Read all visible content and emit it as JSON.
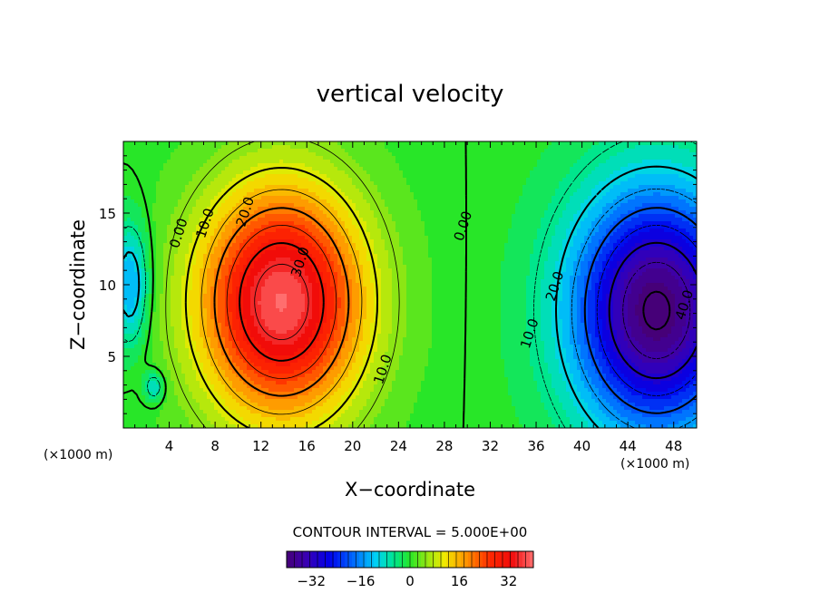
{
  "chart_data": {
    "type": "heatmap",
    "title": "vertical velocity",
    "xlabel": "X−coordinate",
    "ylabel": "Z−coordinate",
    "xlim": [
      0,
      50
    ],
    "ylim": [
      0,
      20
    ],
    "x_ticks": [
      "4",
      "8",
      "12",
      "16",
      "20",
      "24",
      "28",
      "32",
      "36",
      "40",
      "44",
      "48"
    ],
    "x_tick_values": [
      4,
      8,
      12,
      16,
      20,
      24,
      28,
      32,
      36,
      40,
      44,
      48
    ],
    "y_ticks": [
      "5",
      "10",
      "15"
    ],
    "y_tick_values": [
      5,
      10,
      15
    ],
    "x_unit_left": "(×1000 m)",
    "x_unit_right": "(×1000 m)",
    "contour_interval_text": "CONTOUR INTERVAL = 5.000E+00",
    "colorbar": {
      "range": [
        -40,
        40
      ],
      "ticks": [
        "−32",
        "−16",
        "0",
        "16",
        "32"
      ],
      "tick_values": [
        -32,
        -16,
        0,
        16,
        32
      ]
    },
    "contour_labels": [
      {
        "text": "0.00",
        "x": 5.2,
        "z": 13.5
      },
      {
        "text": "10.0",
        "x": 7.5,
        "z": 14.2
      },
      {
        "text": "20.0",
        "x": 11.0,
        "z": 15.0
      },
      {
        "text": "30.0",
        "x": 15.8,
        "z": 11.5
      },
      {
        "text": "10.0",
        "x": 23.0,
        "z": 4.0
      },
      {
        "text": "0.00",
        "x": 30.0,
        "z": 14.0
      },
      {
        "text": "10.0",
        "x": 35.8,
        "z": 6.5
      },
      {
        "text": "20.0",
        "x": 38.0,
        "z": 9.8
      },
      {
        "text": "40.0",
        "x": 49.3,
        "z": 8.5
      }
    ],
    "field_extrema": [
      {
        "name": "updraft max",
        "x": 14.0,
        "z": 9.0,
        "value": 38
      },
      {
        "name": "downdraft min",
        "x": 46.5,
        "z": 7.5,
        "value": -40
      }
    ]
  }
}
